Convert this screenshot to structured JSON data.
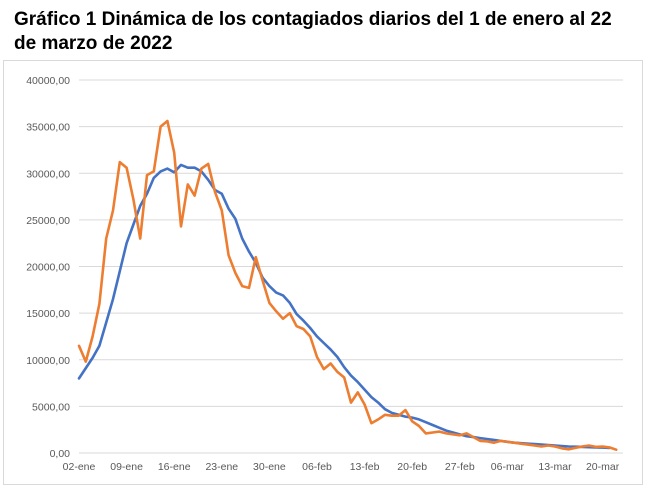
{
  "chart_data": {
    "type": "line",
    "title": "Gráfico 1 Dinámica de los contagiados diarios del 1 de enero al 22 de marzo de 2022",
    "ylim": [
      0,
      40000
    ],
    "y_ticks": [
      0,
      5000,
      10000,
      15000,
      20000,
      25000,
      30000,
      35000,
      40000
    ],
    "y_tick_labels": [
      "0,00",
      "5000,00",
      "10000,00",
      "15000,00",
      "20000,00",
      "25000,00",
      "30000,00",
      "35000,00",
      "40000,00"
    ],
    "x_ticks": [
      0,
      7,
      14,
      21,
      28,
      35,
      42,
      49,
      56,
      63,
      70,
      77
    ],
    "x_tick_labels": [
      "02-ene",
      "09-ene",
      "16-ene",
      "23-ene",
      "30-ene",
      "06-feb",
      "13-feb",
      "20-feb",
      "27-feb",
      "06-mar",
      "13-mar",
      "20-mar"
    ],
    "x_range": [
      0,
      80
    ],
    "grid": true,
    "legend": "none",
    "series": [
      {
        "color": "#4472c4",
        "values": [
          8000,
          9100,
          10200,
          11500,
          14000,
          16500,
          19500,
          22500,
          24500,
          26500,
          27800,
          29500,
          30200,
          30500,
          30100,
          30900,
          30600,
          30600,
          30200,
          29300,
          28200,
          27800,
          26200,
          25100,
          23000,
          21600,
          20400,
          18800,
          17900,
          17200,
          16900,
          16100,
          14900,
          14200,
          13400,
          12500,
          11800,
          11100,
          10300,
          9200,
          8300,
          7600,
          6800,
          6000,
          5400,
          4700,
          4300,
          4100,
          3900,
          3800,
          3600,
          3300,
          3000,
          2700,
          2400,
          2200,
          2000,
          1800,
          1700,
          1600,
          1500,
          1400,
          1300,
          1200,
          1100,
          1050,
          1000,
          950,
          900,
          850,
          800,
          750,
          700,
          680,
          650,
          620,
          600,
          580,
          550
        ]
      },
      {
        "color": "#ed7d31",
        "values": [
          11500,
          9800,
          12500,
          16000,
          23000,
          26000,
          31200,
          30600,
          27200,
          23000,
          29800,
          30200,
          35000,
          35600,
          32200,
          24300,
          28800,
          27600,
          30500,
          31000,
          28000,
          26000,
          21200,
          19300,
          17900,
          17700,
          21000,
          18500,
          16100,
          15200,
          14400,
          15000,
          13600,
          13300,
          12500,
          10300,
          9000,
          9600,
          8700,
          8100,
          5400,
          6500,
          5200,
          3200,
          3600,
          4100,
          4000,
          4000,
          4600,
          3400,
          2900,
          2100,
          2200,
          2300,
          2100,
          2000,
          1900,
          2100,
          1700,
          1300,
          1250,
          1100,
          1300,
          1200,
          1100,
          1000,
          900,
          800,
          700,
          800,
          700,
          500,
          400,
          550,
          700,
          800,
          650,
          700,
          600,
          350
        ]
      }
    ]
  }
}
